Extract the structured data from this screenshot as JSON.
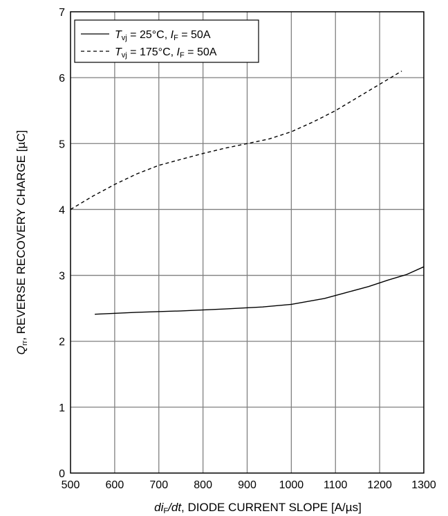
{
  "chart_data": {
    "type": "line",
    "xlim": [
      500,
      1300
    ],
    "ylim": [
      0,
      7
    ],
    "xticks": [
      "500",
      "600",
      "700",
      "800",
      "900",
      "1000",
      "1100",
      "1200",
      "1300"
    ],
    "yticks": [
      "0",
      "1",
      "2",
      "3",
      "4",
      "5",
      "6",
      "7"
    ],
    "grid": true,
    "legend_position": "top-left",
    "xlabel": {
      "v1": "di",
      "v1_sub": "F",
      "v2": "/dt",
      "rest": ", DIODE CURRENT SLOPE [A/µs]"
    },
    "ylabel": {
      "var": "Q",
      "var_sub": "rr",
      "rest": ", REVERSE RECOVERY CHARGE [µC]"
    },
    "series": [
      {
        "style": "solid",
        "legend": {
          "t": "T",
          "t_sub": "vj",
          "mid": " = 25°C, ",
          "i": "I",
          "i_sub": "F",
          "end": " = 50A"
        },
        "x": [
          555,
          650,
          750,
          850,
          935,
          1000,
          1075,
          1125,
          1175,
          1220,
          1260,
          1300
        ],
        "y": [
          2.41,
          2.44,
          2.46,
          2.49,
          2.52,
          2.56,
          2.65,
          2.74,
          2.83,
          2.93,
          3.01,
          3.13
        ]
      },
      {
        "style": "dashed",
        "legend": {
          "t": "T",
          "t_sub": "vj",
          "mid": " = 175°C, ",
          "i": "I",
          "i_sub": "F",
          "end": " = 50A"
        },
        "x": [
          500,
          550,
          600,
          650,
          700,
          750,
          800,
          850,
          900,
          950,
          1000,
          1050,
          1100,
          1150,
          1200,
          1250
        ],
        "y": [
          4.0,
          4.2,
          4.38,
          4.54,
          4.67,
          4.76,
          4.85,
          4.93,
          5.0,
          5.07,
          5.18,
          5.33,
          5.5,
          5.7,
          5.9,
          6.1
        ]
      }
    ]
  }
}
